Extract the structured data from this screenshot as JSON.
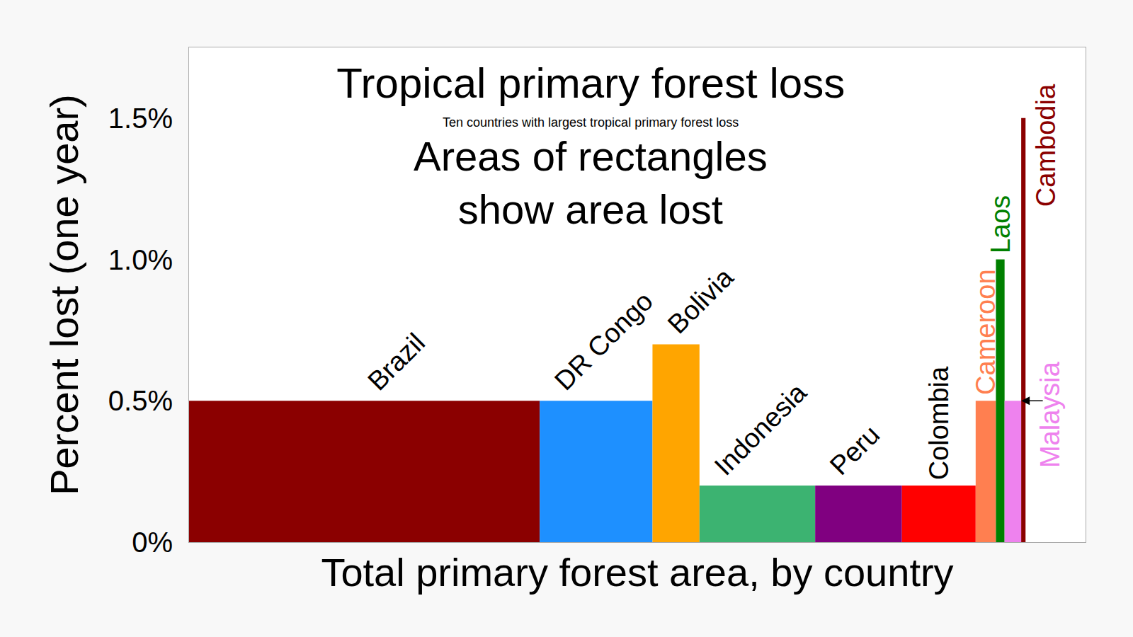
{
  "chart_data": {
    "type": "bar",
    "title": "Tropical primary forest loss",
    "subtitle": "Ten countries with largest tropical primary forest loss",
    "annotation": [
      "Areas of rectangles",
      "show area lost"
    ],
    "x_label": "Total primary forest area, by country",
    "y_label": "Percent lost (one year)",
    "categories": [
      "Brazil",
      "DR Congo",
      "Bolivia",
      "Indonesia",
      "Peru",
      "Colombia",
      "Cameroon",
      "Laos",
      "Malaysia",
      "Cambodia"
    ],
    "values": [
      0.5,
      0.5,
      0.7,
      0.2,
      0.2,
      0.2,
      0.5,
      1.0,
      0.5,
      1.5
    ],
    "widths": [
      485,
      156,
      65,
      160,
      120,
      102,
      28,
      12,
      23,
      6
    ],
    "colors": [
      "#8b0000",
      "#1e90ff",
      "#ffa500",
      "#3cb371",
      "#800080",
      "#ff0000",
      "#ff7f50",
      "#008000",
      "#ee82ee",
      "#8b0000"
    ],
    "xlim": [
      0,
      1240
    ],
    "ylim": [
      0,
      1.75
    ],
    "yticks": [
      {
        "value": 0,
        "label": "0%"
      },
      {
        "value": 0.5,
        "label": "0.5%"
      },
      {
        "value": 1.0,
        "label": "1.0%"
      },
      {
        "value": 1.5,
        "label": "1.5%"
      }
    ],
    "grid": false,
    "tick_labels": "y"
  }
}
